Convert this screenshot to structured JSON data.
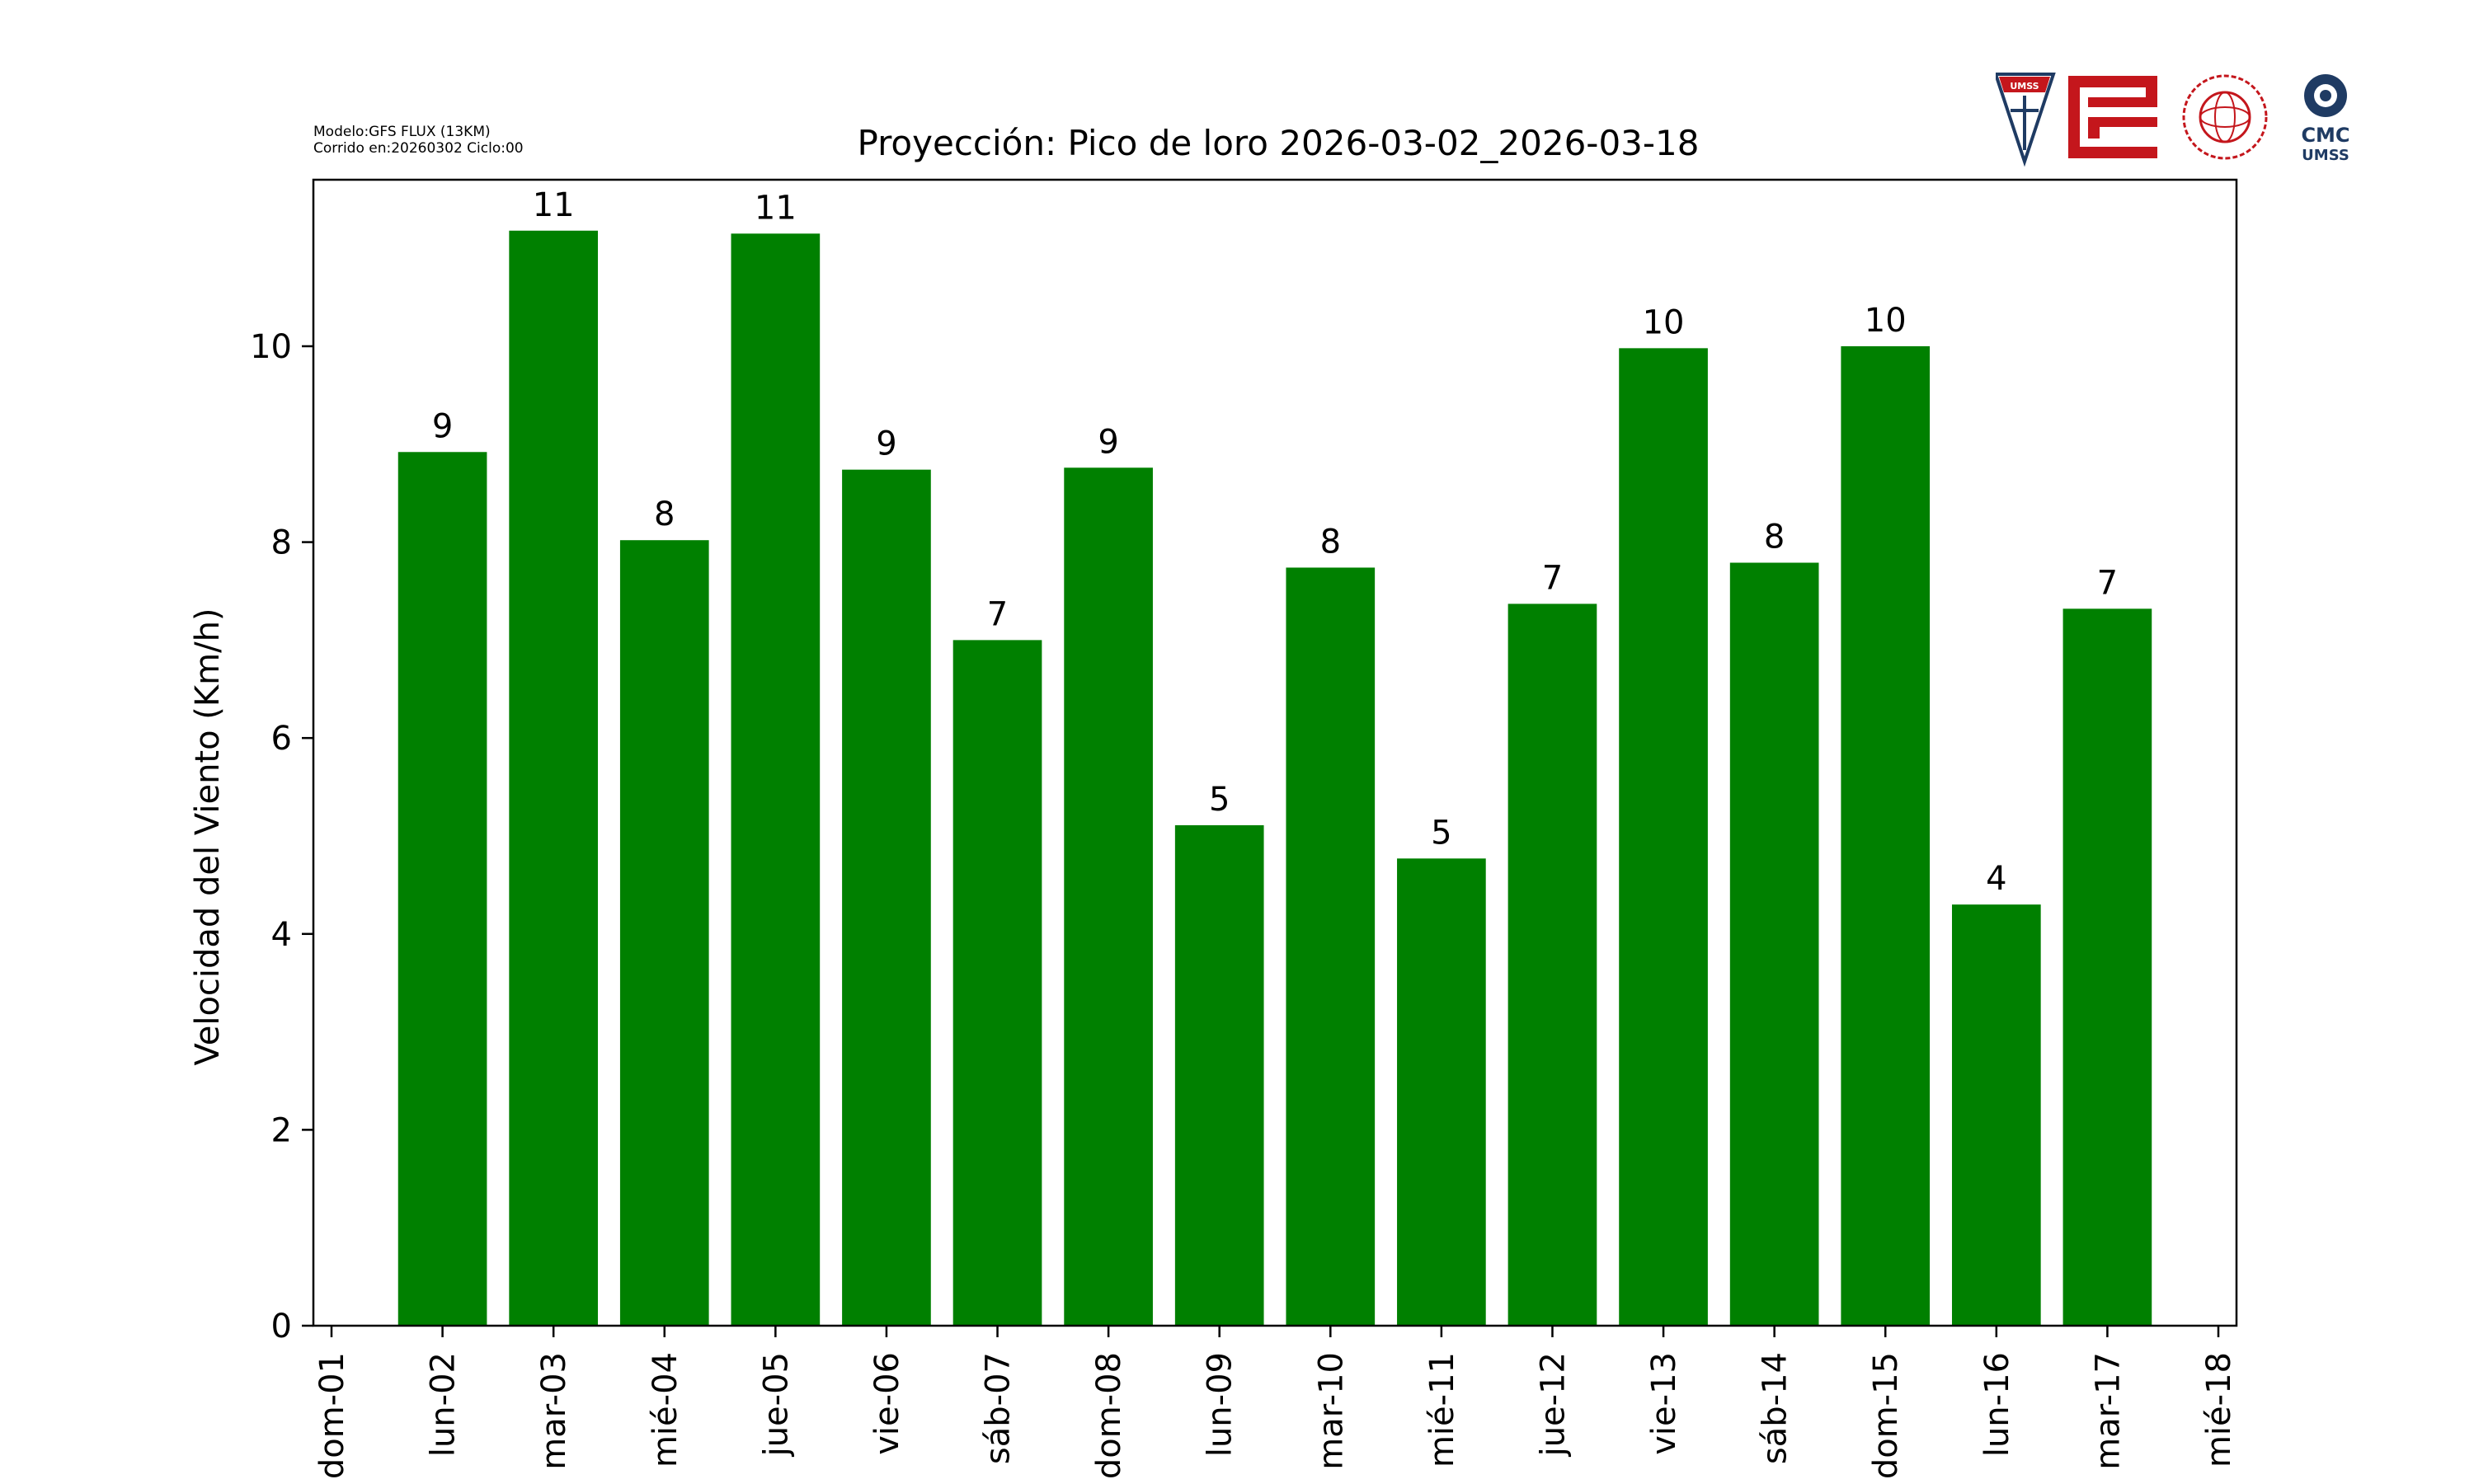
{
  "header": {
    "model_line": "Modelo:GFS FLUX (13KM)",
    "run_line": "Corrido en:20260302 Ciclo:00"
  },
  "logos": {
    "umss_shield_text": "UMSS",
    "cmc_line1": "CMC",
    "cmc_line2": "UMSS"
  },
  "colors": {
    "bar": "#008000",
    "axis": "#000000",
    "background": "#ffffff",
    "logo_red": "#c4161c",
    "logo_navy": "#1f3b63"
  },
  "chart_data": {
    "type": "bar",
    "title": "Proyección: Pico de loro  2026-03-02_2026-03-18",
    "xlabel": "",
    "ylabel": "Velocidad del Viento (Km/h)",
    "ylim": [
      0,
      11.7
    ],
    "yticks": [
      0,
      2,
      4,
      6,
      8,
      10
    ],
    "grid": false,
    "xticks": [
      "dom-01",
      "lun-02",
      "mar-03",
      "mié-04",
      "jue-05",
      "vie-06",
      "sáb-07",
      "dom-08",
      "lun-09",
      "mar-10",
      "mié-11",
      "jue-12",
      "vie-13",
      "sáb-14",
      "dom-15",
      "lun-16",
      "mar-17",
      "mié-18"
    ],
    "categories": [
      "lun-02",
      "mar-03",
      "mié-04",
      "jue-05",
      "vie-06",
      "sáb-07",
      "dom-08",
      "lun-09",
      "mar-10",
      "mié-11",
      "jue-12",
      "vie-13",
      "sáb-14",
      "dom-15",
      "lun-16",
      "mar-17"
    ],
    "values": [
      8.92,
      11.18,
      8.02,
      11.15,
      8.74,
      7.0,
      8.76,
      5.11,
      7.74,
      4.77,
      7.37,
      9.98,
      7.79,
      10.0,
      4.3,
      7.32
    ],
    "data_labels": [
      "9",
      "11",
      "8",
      "11",
      "9",
      "7",
      "9",
      "5",
      "8",
      "5",
      "7",
      "10",
      "8",
      "10",
      "4",
      "7"
    ]
  }
}
